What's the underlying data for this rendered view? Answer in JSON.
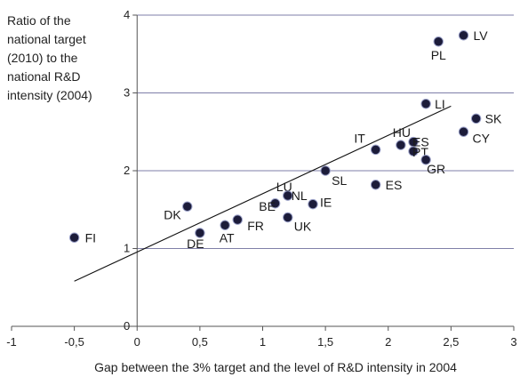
{
  "chart_data": {
    "type": "scatter",
    "title": "",
    "ylabel_lines": [
      "Ratio of the",
      "national target",
      "(2010) to the",
      "national R&D",
      "intensity (2004)"
    ],
    "xlabel": "Gap between the 3% target and the level of R&D intensity in 2004",
    "xlim": [
      -1,
      3
    ],
    "ylim": [
      0,
      4
    ],
    "x_ticks": [
      "-1",
      "-0,5",
      "0",
      "0,5",
      "1",
      "1,5",
      "2",
      "2,5",
      "3"
    ],
    "y_ticks": [
      "0",
      "1",
      "2",
      "3",
      "4"
    ],
    "grid": "horizontal",
    "point_color": "#1c1c3a",
    "grid_color": "#7f7fa8",
    "trendline": {
      "x": [
        -0.5,
        2.5
      ],
      "y": [
        0.58,
        2.83
      ]
    },
    "points": [
      {
        "label": "FI",
        "x": -0.5,
        "y": 1.14
      },
      {
        "label": "DK",
        "x": 0.4,
        "y": 1.54
      },
      {
        "label": "DE",
        "x": 0.5,
        "y": 1.2
      },
      {
        "label": "AT",
        "x": 0.7,
        "y": 1.3
      },
      {
        "label": "FR",
        "x": 0.8,
        "y": 1.37
      },
      {
        "label": "BE",
        "x": 1.1,
        "y": 1.58
      },
      {
        "label": "LU",
        "x": 1.2,
        "y": 1.68
      },
      {
        "label": "NL",
        "x": 1.2,
        "y": 1.68
      },
      {
        "label": "UK",
        "x": 1.2,
        "y": 1.4
      },
      {
        "label": "IE",
        "x": 1.4,
        "y": 1.57
      },
      {
        "label": "SL",
        "x": 1.5,
        "y": 2.0
      },
      {
        "label": "IT",
        "x": 1.9,
        "y": 2.27
      },
      {
        "label": "ES",
        "x": 1.9,
        "y": 1.82
      },
      {
        "label": "HU",
        "x": 2.1,
        "y": 2.33
      },
      {
        "label": "ES",
        "x": 2.2,
        "y": 2.37
      },
      {
        "label": "PT",
        "x": 2.2,
        "y": 2.25
      },
      {
        "label": "GR",
        "x": 2.3,
        "y": 2.14
      },
      {
        "label": "LI",
        "x": 2.3,
        "y": 2.86
      },
      {
        "label": "CY",
        "x": 2.6,
        "y": 2.5
      },
      {
        "label": "SK",
        "x": 2.7,
        "y": 2.67
      },
      {
        "label": "PL",
        "x": 2.4,
        "y": 3.66
      },
      {
        "label": "LV",
        "x": 2.6,
        "y": 3.74
      }
    ]
  }
}
